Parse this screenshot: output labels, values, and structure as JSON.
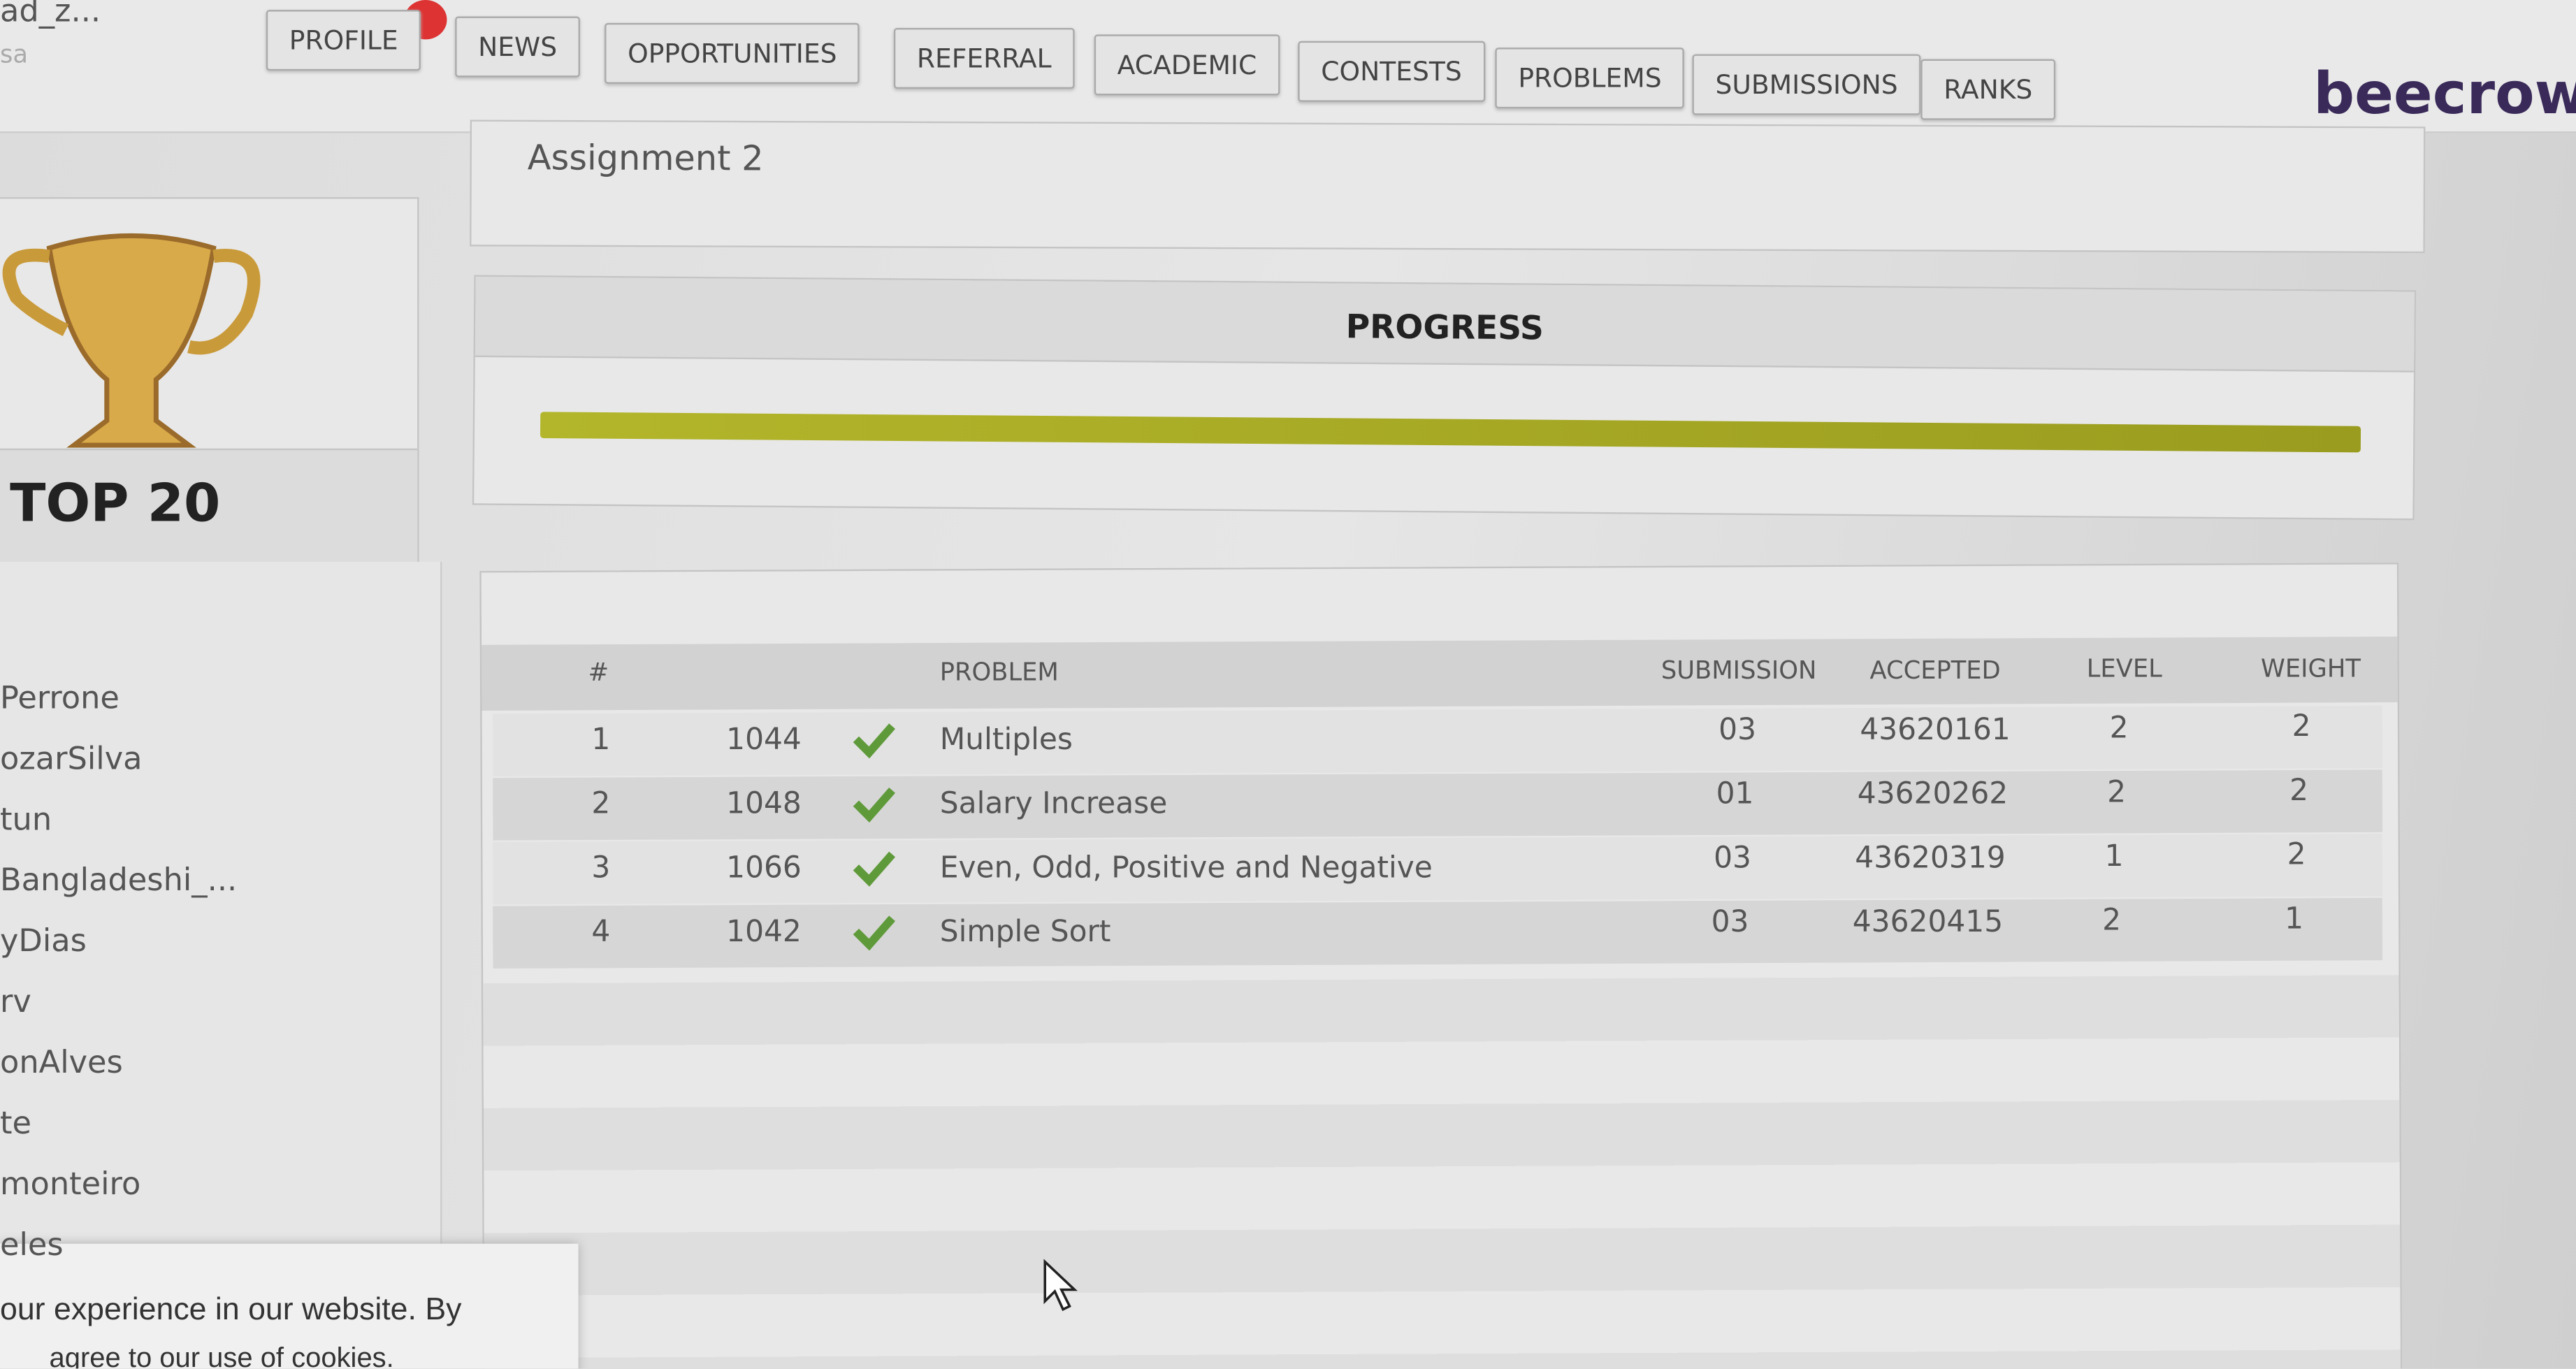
{
  "user": {
    "name": "ad_z...",
    "sub": "sa"
  },
  "nav": [
    "PROFILE",
    "NEWS",
    "OPPORTUNITIES",
    "REFERRAL",
    "ACADEMIC",
    "CONTESTS",
    "PROBLEMS",
    "SUBMISSIONS",
    "RANKS"
  ],
  "brand": "beecrowd",
  "assignment": "Assignment 2",
  "progress": {
    "title": "PROGRESS"
  },
  "sidebar": {
    "title": "TOP 20",
    "names": [
      "Perrone",
      "ozarSilva",
      "tun",
      "Bangladeshi_...",
      "yDias",
      "rv",
      "onAlves",
      "te",
      "monteiro",
      "eles"
    ]
  },
  "table": {
    "header": [
      "#",
      "PROBLEM",
      "SUBMISSION",
      "ACCEPTED",
      "LEVEL",
      "WEIGHT"
    ],
    "rows": [
      [
        "1",
        "1044",
        "Multiples",
        "03",
        "43620161",
        "2",
        "2"
      ],
      [
        "2",
        "1048",
        "Salary Increase",
        "01",
        "43620262",
        "2",
        "2"
      ],
      [
        "3",
        "1066",
        "Even, Odd, Positive and Negative",
        "03",
        "43620319",
        "1",
        "2"
      ],
      [
        "4",
        "1042",
        "Simple Sort",
        "03",
        "43620415",
        "2",
        "1"
      ]
    ]
  },
  "cookie": {
    "line1": "our experience in our website. By",
    "line2": "agree to our use of cookies."
  }
}
